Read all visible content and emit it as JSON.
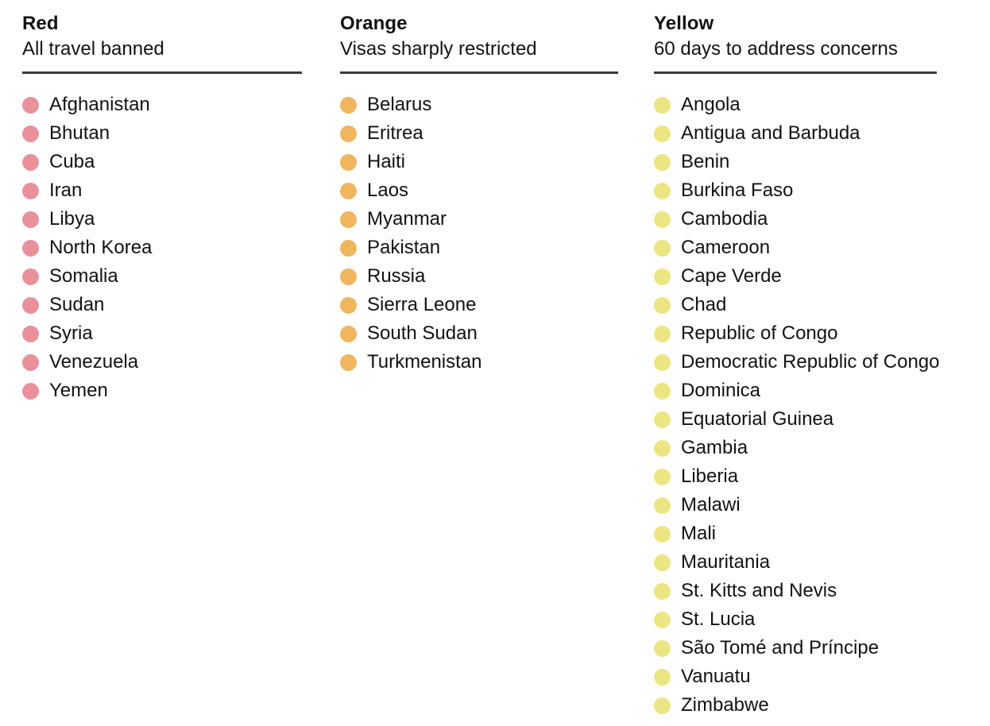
{
  "colors": {
    "text": "#121212",
    "rule": "#3a3a3a",
    "red_dot": "#e9919b",
    "orange_dot": "#f0b55f",
    "yellow_dot": "#ece584"
  },
  "chart_data": {
    "type": "table",
    "title": "",
    "legend_position": "none",
    "groups": [
      {
        "label": "Red",
        "description": "All travel banned",
        "color": "#e9919b",
        "count": 11,
        "items": [
          "Afghanistan",
          "Bhutan",
          "Cuba",
          "Iran",
          "Libya",
          "North Korea",
          "Somalia",
          "Sudan",
          "Syria",
          "Venezuela",
          "Yemen"
        ]
      },
      {
        "label": "Orange",
        "description": "Visas sharply restricted",
        "color": "#f0b55f",
        "count": 10,
        "items": [
          "Belarus",
          "Eritrea",
          "Haiti",
          "Laos",
          "Myanmar",
          "Pakistan",
          "Russia",
          "Sierra Leone",
          "South Sudan",
          "Turkmenistan"
        ]
      },
      {
        "label": "Yellow",
        "description": "60 days to address concerns",
        "color": "#ece584",
        "count": 22,
        "items": [
          "Angola",
          "Antigua and Barbuda",
          "Benin",
          "Burkina Faso",
          "Cambodia",
          "Cameroon",
          "Cape Verde",
          "Chad",
          "Republic of Congo",
          "Democratic Republic of Congo",
          "Dominica",
          "Equatorial Guinea",
          "Gambia",
          "Liberia",
          "Malawi",
          "Mali",
          "Mauritania",
          "St. Kitts and Nevis",
          "St. Lucia",
          "São Tomé and Príncipe",
          "Vanuatu",
          "Zimbabwe"
        ]
      }
    ]
  }
}
